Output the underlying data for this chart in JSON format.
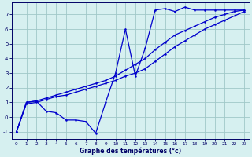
{
  "xlabel": "Graphe des températures (°c)",
  "bg_color": "#d6f0f0",
  "grid_color": "#a0c8c8",
  "line_color": "#0000cc",
  "xlim": [
    -0.5,
    23.5
  ],
  "ylim": [
    -1.5,
    7.8
  ],
  "yticks": [
    -1,
    0,
    1,
    2,
    3,
    4,
    5,
    6,
    7
  ],
  "xticks": [
    0,
    1,
    2,
    3,
    4,
    5,
    6,
    7,
    8,
    9,
    10,
    11,
    12,
    13,
    14,
    15,
    16,
    17,
    18,
    19,
    20,
    21,
    22,
    23
  ],
  "line1_x": [
    0,
    1,
    2,
    3,
    4,
    5,
    6,
    7,
    8,
    9,
    10,
    11,
    12,
    13,
    14,
    15,
    16,
    17,
    18,
    19,
    20,
    21,
    22,
    23
  ],
  "line1_y": [
    -1.0,
    1.0,
    1.1,
    0.4,
    0.3,
    -0.2,
    -0.2,
    -0.3,
    -1.1,
    1.0,
    3.0,
    6.0,
    2.8,
    4.7,
    7.3,
    7.4,
    7.2,
    7.5,
    7.3,
    7.3,
    7.3,
    7.3,
    7.3,
    7.3
  ],
  "line2_x": [
    0,
    1,
    2,
    3,
    4,
    5,
    6,
    7,
    8,
    9,
    10,
    11,
    12,
    13,
    14,
    15,
    16,
    17,
    18,
    19,
    20,
    21,
    22,
    23
  ],
  "line2_y": [
    -1.0,
    0.9,
    1.0,
    1.2,
    1.4,
    1.5,
    1.7,
    1.9,
    2.1,
    2.3,
    2.5,
    2.8,
    3.0,
    3.3,
    3.8,
    4.3,
    4.8,
    5.2,
    5.6,
    6.0,
    6.3,
    6.6,
    6.9,
    7.2
  ],
  "line3_x": [
    0,
    1,
    2,
    3,
    4,
    5,
    6,
    7,
    8,
    9,
    10,
    11,
    12,
    13,
    14,
    15,
    16,
    17,
    18,
    19,
    20,
    21,
    22,
    23
  ],
  "line3_y": [
    -1.0,
    1.0,
    1.1,
    1.3,
    1.5,
    1.7,
    1.9,
    2.1,
    2.3,
    2.5,
    2.8,
    3.2,
    3.6,
    4.0,
    4.6,
    5.1,
    5.6,
    5.9,
    6.2,
    6.5,
    6.8,
    7.0,
    7.2,
    7.3
  ]
}
